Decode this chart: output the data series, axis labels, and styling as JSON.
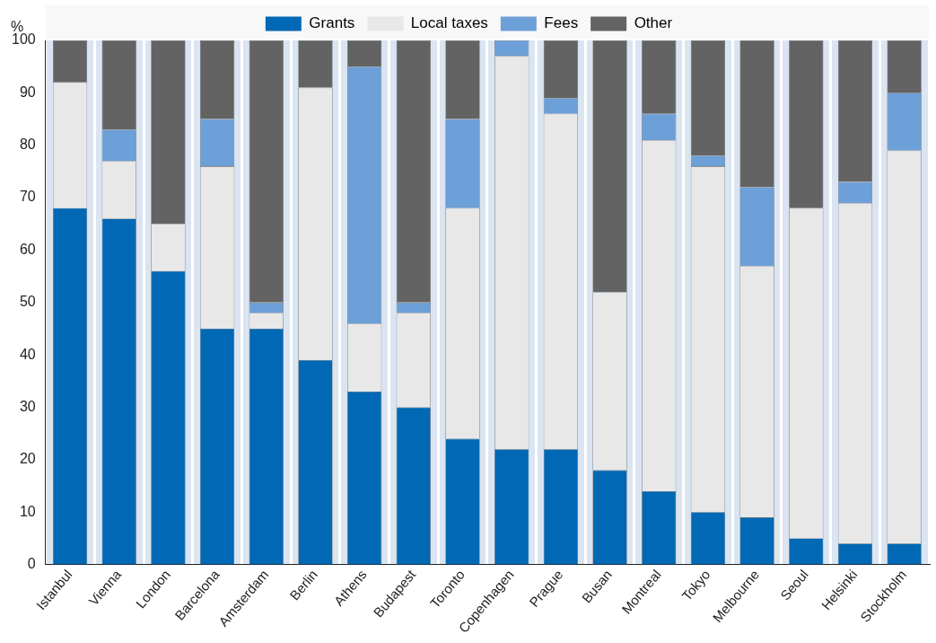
{
  "chart_data": {
    "type": "bar",
    "stacked": true,
    "ylabel": "%",
    "categories": [
      "Istanbul",
      "Vienna",
      "London",
      "Barcelona",
      "Amsterdam",
      "Berlin",
      "Athens",
      "Budapest",
      "Toronto",
      "Copenhagen",
      "Prague",
      "Busan",
      "Montreal",
      "Tokyo",
      "Melbourne",
      "Seoul",
      "Helsinki",
      "Stockholm"
    ],
    "series": [
      {
        "name": "Grants",
        "color": "#0068b4",
        "values": [
          68,
          66,
          56,
          45,
          45,
          39,
          33,
          30,
          24,
          22,
          22,
          18,
          14,
          10,
          9,
          5,
          4,
          4
        ]
      },
      {
        "name": "Local taxes",
        "color": "#e8e8e8",
        "values": [
          24,
          11,
          9,
          31,
          3,
          52,
          13,
          18,
          44,
          75,
          64,
          34,
          67,
          66,
          48,
          63,
          65,
          75
        ]
      },
      {
        "name": "Fees",
        "color": "#6d9fd8",
        "values": [
          0,
          6,
          0,
          9,
          2,
          0,
          49,
          2,
          17,
          3,
          3,
          0,
          5,
          2,
          15,
          0,
          4,
          11
        ]
      },
      {
        "name": "Other",
        "color": "#636363",
        "values": [
          8,
          17,
          35,
          15,
          50,
          9,
          5,
          50,
          15,
          0,
          11,
          48,
          14,
          22,
          28,
          32,
          27,
          10
        ]
      }
    ],
    "ylim": [
      0,
      100
    ],
    "yticks": [
      0,
      10,
      20,
      30,
      40,
      50,
      60,
      70,
      80,
      90,
      100
    ],
    "grid": "x",
    "legend": "top"
  }
}
